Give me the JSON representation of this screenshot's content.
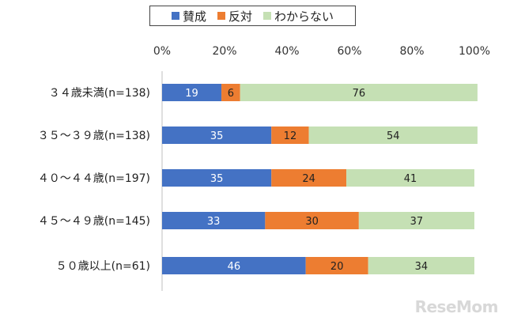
{
  "legend": {
    "items": [
      {
        "label": "賛成",
        "color": "#4472c4"
      },
      {
        "label": "反対",
        "color": "#ed7d31"
      },
      {
        "label": "わからない",
        "color": "#c5e0b4"
      }
    ]
  },
  "chart_data": {
    "type": "bar",
    "orientation": "horizontal",
    "stacked": true,
    "categories": [
      "３４歳未満(n=138)",
      "３５～３９歳(n=138)",
      "４０～４４歳(n=197)",
      "４５～４９歳(n=145)",
      "５０歳以上(n=61)"
    ],
    "series": [
      {
        "name": "賛成",
        "color": "#4472c4",
        "label_color": "#ffffff",
        "values": [
          19,
          35,
          35,
          33,
          46
        ]
      },
      {
        "name": "反対",
        "color": "#ed7d31",
        "label_color": "#222222",
        "values": [
          6,
          12,
          24,
          30,
          20
        ]
      },
      {
        "name": "わからない",
        "color": "#c5e0b4",
        "label_color": "#222222",
        "values": [
          76,
          54,
          41,
          37,
          34
        ]
      }
    ],
    "xlim": [
      0,
      100
    ],
    "xticks": [
      "0%",
      "20%",
      "40%",
      "60%",
      "80%",
      "100%"
    ],
    "grid": false,
    "legend_position": "top"
  },
  "watermark": "ReseMom"
}
